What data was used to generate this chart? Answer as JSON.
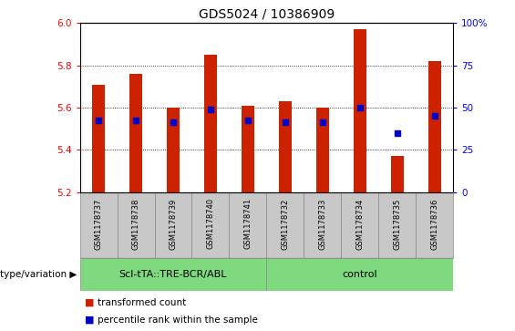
{
  "title": "GDS5024 / 10386909",
  "samples": [
    "GSM1178737",
    "GSM1178738",
    "GSM1178739",
    "GSM1178740",
    "GSM1178741",
    "GSM1178732",
    "GSM1178733",
    "GSM1178734",
    "GSM1178735",
    "GSM1178736"
  ],
  "red_values": [
    5.71,
    5.76,
    5.6,
    5.85,
    5.61,
    5.63,
    5.6,
    5.97,
    5.37,
    5.82
  ],
  "blue_values": [
    5.54,
    5.54,
    5.53,
    5.59,
    5.54,
    5.53,
    5.53,
    5.6,
    5.48,
    5.56
  ],
  "groups": [
    {
      "label": "Scl-tTA::TRE-BCR/ABL",
      "start": 0,
      "end": 5,
      "color": "#7FD97F"
    },
    {
      "label": "control",
      "start": 5,
      "end": 10,
      "color": "#7FD97F"
    }
  ],
  "group_label_prefix": "genotype/variation",
  "ylim": [
    5.2,
    6.0
  ],
  "y2lim": [
    0,
    100
  ],
  "yticks_left": [
    5.2,
    5.4,
    5.6,
    5.8,
    6.0
  ],
  "yticks_right": [
    0,
    25,
    50,
    75,
    100
  ],
  "bar_color": "#cc2200",
  "dot_color": "#0000cc",
  "bar_width": 0.35,
  "bg_color": "#ffffff",
  "plot_bg": "#ffffff",
  "tick_label_bg": "#c8c8c8",
  "legend_red": "transformed count",
  "legend_blue": "percentile rank within the sample",
  "title_fontsize": 10,
  "axis_fontsize": 7.5,
  "label_fontsize": 7,
  "sample_fontsize": 6
}
